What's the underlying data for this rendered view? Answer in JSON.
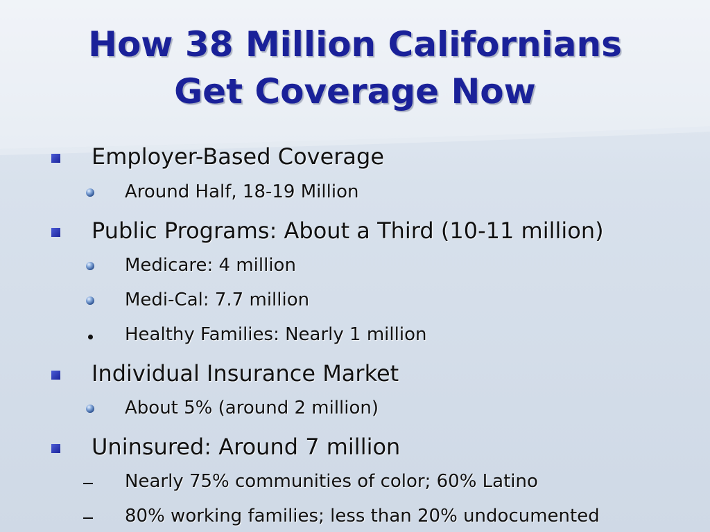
{
  "slide": {
    "title_line1": "How 38 Million Californians",
    "title_line2": "Get Coverage Now",
    "bullets": [
      {
        "text": "Employer-Based Coverage",
        "sub": [
          {
            "text": "Around Half, 18-19 Million",
            "marker": "ball"
          }
        ]
      },
      {
        "text": "Public Programs: About a Third (10-11 million)",
        "sub": [
          {
            "text": "Medicare: 4 million",
            "marker": "ball"
          },
          {
            "text": "Medi-Cal: 7.7 million",
            "marker": "ball"
          },
          {
            "text": "Healthy Families: Nearly 1 million",
            "marker": "dot"
          }
        ]
      },
      {
        "text": "Individual Insurance Market",
        "sub": [
          {
            "text": "About 5% (around 2 million)",
            "marker": "ball"
          }
        ]
      },
      {
        "text": "Uninsured: Around 7 million",
        "sub": [
          {
            "text": "Nearly 75% communities of color; 60% Latino",
            "marker": "dash"
          },
          {
            "text": "80% working families; less than 20% undocumented",
            "marker": "dash"
          }
        ]
      }
    ]
  },
  "colors": {
    "title": "#1a2199",
    "body_text": "#111111",
    "bullet_square": "#2a35b8",
    "background_top": "#e9eef5",
    "background_bottom": "#cfd9e6"
  },
  "icons": {
    "level1_marker": "blue-square-bullet",
    "level2_markers": [
      "blue-sphere-bullet",
      "dot-bullet",
      "dash-bullet"
    ]
  }
}
